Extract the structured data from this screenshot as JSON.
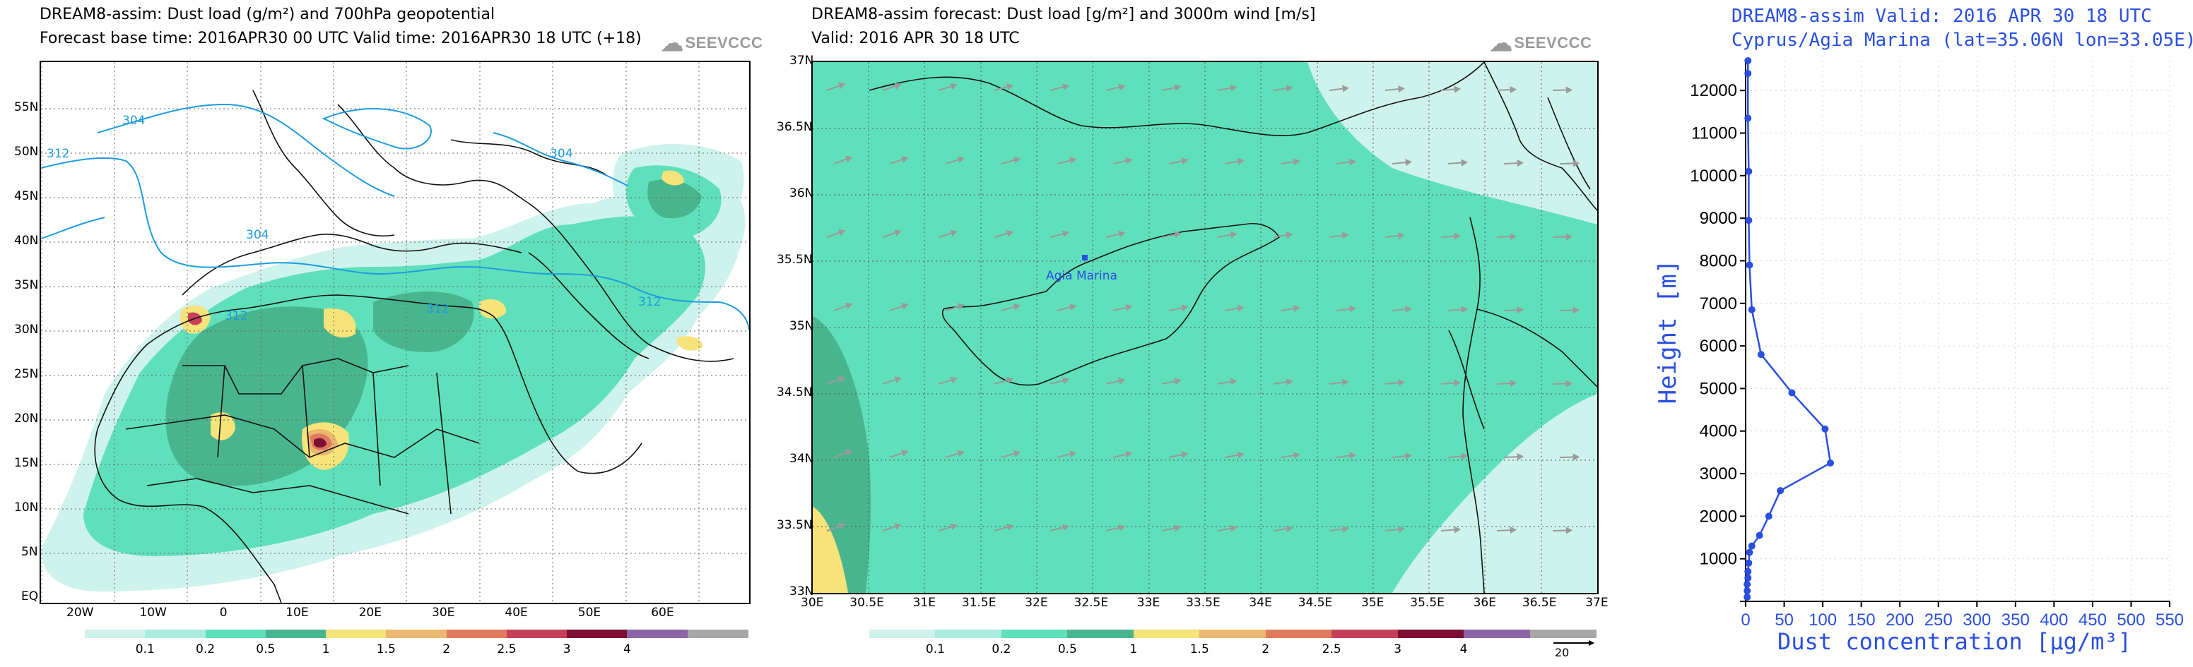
{
  "panel1": {
    "title_line1": "DREAM8-assim: Dust load (g/m²) and 700hPa geopotential",
    "title_line2": "Forecast base time: 2016APR30 00 UTC   Valid time: 2016APR30 18 UTC   (+18)",
    "logo": "SEEVCCC",
    "lat_labels": [
      "55N",
      "50N",
      "45N",
      "40N",
      "35N",
      "30N",
      "25N",
      "20N",
      "15N",
      "10N",
      "5N",
      "EQ"
    ],
    "lon_labels": [
      "20W",
      "10W",
      "0",
      "10E",
      "20E",
      "30E",
      "40E",
      "50E",
      "60E"
    ],
    "contour_labels": [
      "304",
      "312",
      "304",
      "304",
      "312",
      "312",
      "312"
    ],
    "colorbar_labels": [
      "0.1",
      "0.2",
      "0.5",
      "1",
      "1.5",
      "2",
      "2.5",
      "3",
      "4"
    ],
    "colorbar_colors": [
      "#cdf3ec",
      "#a8ecde",
      "#5fe0bb",
      "#49b58e",
      "#f6e37a",
      "#ecb76e",
      "#e07a5f",
      "#c6405a",
      "#7c1033",
      "#8d64a8",
      "#a7a7a7"
    ]
  },
  "panel2": {
    "title_line1": "DREAM8-assim forecast: Dust load [g/m²] and 3000m wind [m/s]",
    "title_line2": "Valid: 2016 APR 30   18 UTC",
    "logo": "SEEVCCC",
    "lat_labels": [
      "37N",
      "36.5N",
      "36N",
      "35.5N",
      "35N",
      "34.5N",
      "34N",
      "33.5N",
      "33N"
    ],
    "lon_labels": [
      "30E",
      "30.5E",
      "31E",
      "31.5E",
      "32E",
      "32.5E",
      "33E",
      "33.5E",
      "34E",
      "34.5E",
      "35E",
      "35.5E",
      "36E",
      "36.5E",
      "37E"
    ],
    "station_label": "Agia Marina",
    "colorbar_labels": [
      "0.1",
      "0.2",
      "0.5",
      "1",
      "1.5",
      "2",
      "2.5",
      "3",
      "4"
    ],
    "wind_ref": "20"
  },
  "panel3": {
    "title_line1": "DREAM8-assim   Valid: 2016 APR 30   18 UTC",
    "title_line2": "Cyprus/Agia Marina (lat=35.06N lon=33.05E)",
    "ylabel": "Height [m]",
    "xlabel": "Dust concentration [μg/m³]",
    "line_color": "#2a4fe0"
  },
  "chart_data": {
    "type": "line",
    "title": "DREAM8-assim   Valid: 2016 APR 30   18 UTC",
    "subtitle": "Cyprus/Agia Marina (lat=35.06N lon=33.05E)",
    "xlabel": "Dust concentration [μg/m³]",
    "ylabel": "Height [m]",
    "xlim": [
      0,
      550
    ],
    "ylim": [
      0,
      12700
    ],
    "xticks": [
      0,
      50,
      100,
      150,
      200,
      250,
      300,
      350,
      400,
      450,
      500,
      550
    ],
    "yticks": [
      1000,
      2000,
      3000,
      4000,
      5000,
      6000,
      7000,
      8000,
      9000,
      10000,
      11000,
      12000
    ],
    "grid": true,
    "series": [
      {
        "x": [
          2,
          2,
          2,
          3,
          3,
          4,
          5,
          8,
          18,
          30,
          45,
          110,
          103,
          60,
          20,
          8,
          5,
          4,
          4,
          3,
          3,
          3
        ],
        "y": [
          100,
          250,
          400,
          550,
          700,
          900,
          1150,
          1300,
          1550,
          2000,
          2600,
          3250,
          4050,
          4900,
          5800,
          6850,
          7900,
          8950,
          10100,
          11350,
          12400,
          12700
        ]
      }
    ]
  }
}
